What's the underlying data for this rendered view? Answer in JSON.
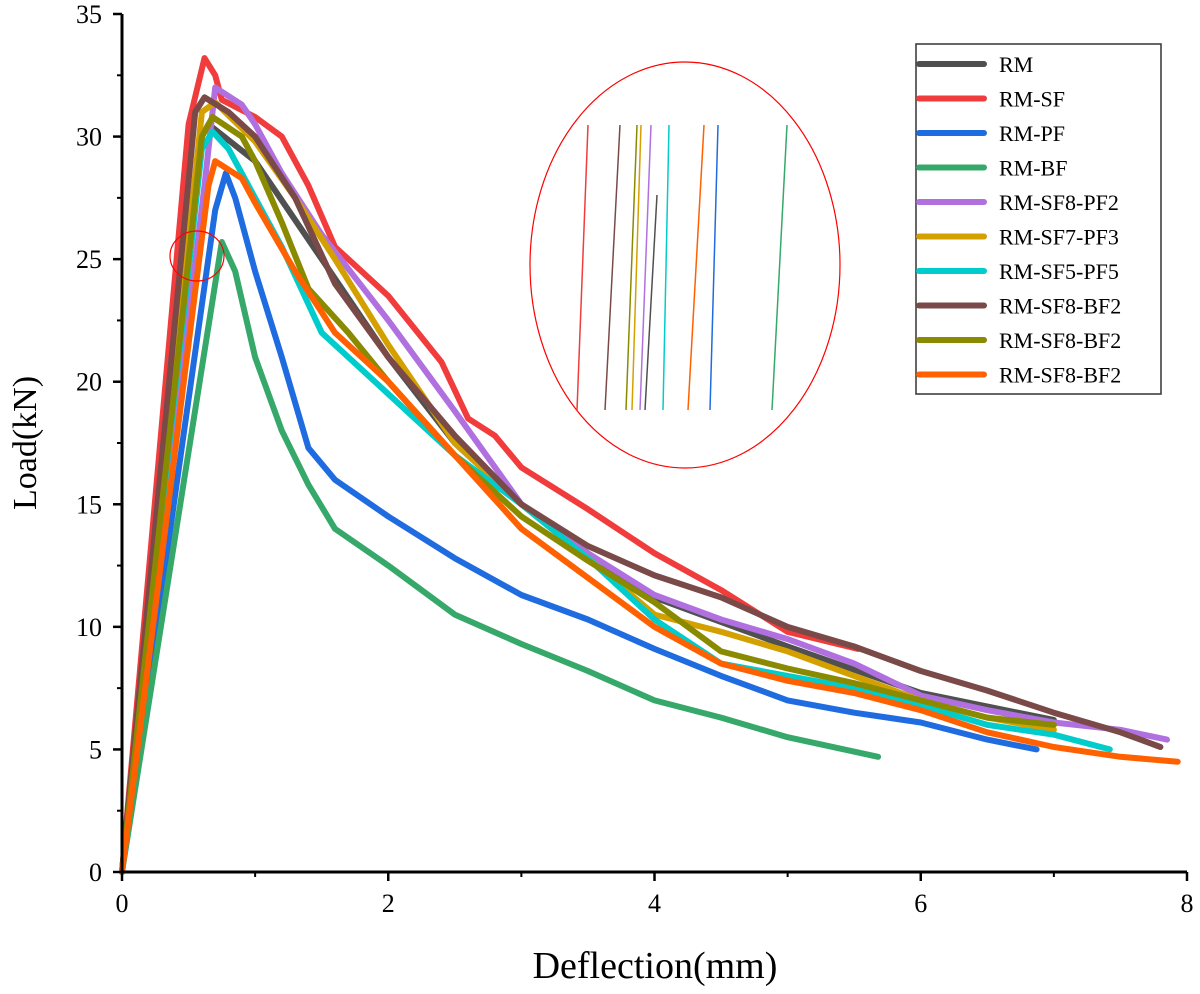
{
  "chart_data": {
    "type": "line",
    "title": "",
    "xlabel": "Deflection(mm)",
    "ylabel": "Load(kN)",
    "xlim": [
      0,
      8
    ],
    "ylim": [
      0,
      35
    ],
    "xticks": [
      0,
      2,
      4,
      6,
      8
    ],
    "yticks": [
      0,
      5,
      10,
      15,
      20,
      25,
      30,
      35
    ],
    "grid": false,
    "legend_position": "top-right",
    "series": [
      {
        "name": "RM",
        "color": "#505050",
        "x": [
          0,
          0.6,
          0.65,
          1,
          1.5,
          2,
          2.5,
          3,
          3.5,
          4,
          5,
          6,
          7
        ],
        "y": [
          0,
          30,
          30.5,
          29,
          25,
          21,
          17.5,
          15,
          13,
          11.2,
          9.2,
          7.3,
          6.2
        ]
      },
      {
        "name": "RM-SF",
        "color": "#f03c3c",
        "x": [
          0,
          0.5,
          0.62,
          0.7,
          0.75,
          1,
          1.2,
          1.4,
          1.6,
          2,
          2.4,
          2.6,
          2.8,
          3,
          3.5,
          4,
          4.5,
          5,
          5.53
        ],
        "y": [
          0,
          30.5,
          33.2,
          32.5,
          31.5,
          30.8,
          30,
          28,
          25.5,
          23.5,
          20.8,
          18.5,
          17.8,
          16.5,
          14.8,
          13,
          11.5,
          9.8,
          9.1
        ]
      },
      {
        "name": "RM-PF",
        "color": "#1f6be0",
        "x": [
          0,
          0.7,
          0.78,
          0.85,
          1,
          1.2,
          1.4,
          1.6,
          2,
          2.5,
          3,
          3.5,
          4,
          4.5,
          5,
          5.5,
          6,
          6.5,
          6.87
        ],
        "y": [
          0,
          27,
          28.5,
          27.5,
          24.5,
          21,
          17.3,
          16,
          14.5,
          12.8,
          11.3,
          10.3,
          9.1,
          8,
          7,
          6.5,
          6.1,
          5.4,
          5.0
        ]
      },
      {
        "name": "RM-BF",
        "color": "#35a86a",
        "x": [
          0,
          0.75,
          0.85,
          1,
          1.2,
          1.4,
          1.6,
          2,
          2.5,
          3,
          3.5,
          4,
          4.5,
          5,
          5.68
        ],
        "y": [
          0,
          25.7,
          24.5,
          21,
          18,
          15.8,
          14,
          12.5,
          10.5,
          9.3,
          8.2,
          7,
          6.3,
          5.5,
          4.7
        ]
      },
      {
        "name": "RM-SF8-PF2",
        "color": "#b070e0",
        "x": [
          0,
          0.62,
          0.7,
          0.9,
          1,
          1.2,
          1.5,
          2,
          2.5,
          3,
          3.5,
          4,
          4.5,
          5,
          5.5,
          6,
          6.5,
          7,
          7.5,
          7.85
        ],
        "y": [
          0,
          28,
          32,
          31.3,
          30.5,
          28.5,
          26,
          22.5,
          18.8,
          15,
          13,
          11.3,
          10.3,
          9.5,
          8.5,
          7.2,
          6.6,
          6.1,
          5.8,
          5.4
        ]
      },
      {
        "name": "RM-SF7-PF3",
        "color": "#d4a000",
        "x": [
          0,
          0.6,
          0.7,
          1,
          1.3,
          1.6,
          2,
          2.5,
          3,
          3.5,
          4,
          4.5,
          5,
          5.5,
          6,
          6.5,
          7
        ],
        "y": [
          0,
          31,
          31.4,
          29.8,
          27.5,
          25,
          21.5,
          17.5,
          15,
          12.8,
          10.5,
          9.8,
          9,
          8,
          7,
          6.3,
          5.8
        ]
      },
      {
        "name": "RM-SF5-PF5",
        "color": "#00cccc",
        "x": [
          0,
          0.6,
          0.68,
          0.8,
          1,
          1.2,
          1.5,
          2,
          2.5,
          3,
          3.5,
          4,
          4.5,
          5,
          5.5,
          6,
          6.5,
          7,
          7.42
        ],
        "y": [
          0,
          29.5,
          30.2,
          29.5,
          27.5,
          25.5,
          22,
          19.5,
          17,
          15,
          12.8,
          10.3,
          8.5,
          8,
          7.5,
          6.8,
          6,
          5.6,
          5.0
        ]
      },
      {
        "name": "RM-SF8-BF2",
        "color": "#7a4a48",
        "x": [
          0,
          0.55,
          0.62,
          0.8,
          1,
          1.3,
          1.6,
          2,
          2.5,
          3,
          3.5,
          4,
          4.5,
          5,
          5.5,
          6,
          6.5,
          7,
          7.5,
          7.8
        ],
        "y": [
          0,
          31,
          31.6,
          31,
          30,
          27.5,
          24,
          21,
          17.8,
          15,
          13.3,
          12.1,
          11.2,
          10,
          9.2,
          8.2,
          7.4,
          6.5,
          5.7,
          5.1
        ]
      },
      {
        "name": "RM-SF8-BF2",
        "color": "#8a8a00",
        "x": [
          0,
          0.6,
          0.68,
          0.9,
          1,
          1.2,
          1.4,
          1.7,
          2,
          2.5,
          3,
          3.5,
          4,
          4.5,
          5,
          5.5,
          6,
          6.5,
          7
        ],
        "y": [
          0,
          30,
          30.8,
          30,
          29,
          26.5,
          23.8,
          22,
          20,
          17,
          14.5,
          12.7,
          11,
          9,
          8.3,
          7.7,
          7,
          6.3,
          6.0
        ]
      },
      {
        "name": "RM-SF8-BF2",
        "color": "#ff6000",
        "x": [
          0,
          0.65,
          0.7,
          0.9,
          1,
          1.3,
          1.6,
          2,
          2.5,
          3,
          3.5,
          4,
          4.5,
          5,
          5.5,
          6,
          6.5,
          7,
          7.5,
          7.93
        ],
        "y": [
          0,
          28,
          29,
          28.3,
          27.3,
          24.5,
          22,
          20,
          17,
          14,
          12,
          10,
          8.5,
          7.8,
          7.3,
          6.6,
          5.7,
          5.1,
          4.7,
          4.5
        ]
      }
    ],
    "annotations": {
      "magnifier_color": "#ff0000"
    }
  }
}
